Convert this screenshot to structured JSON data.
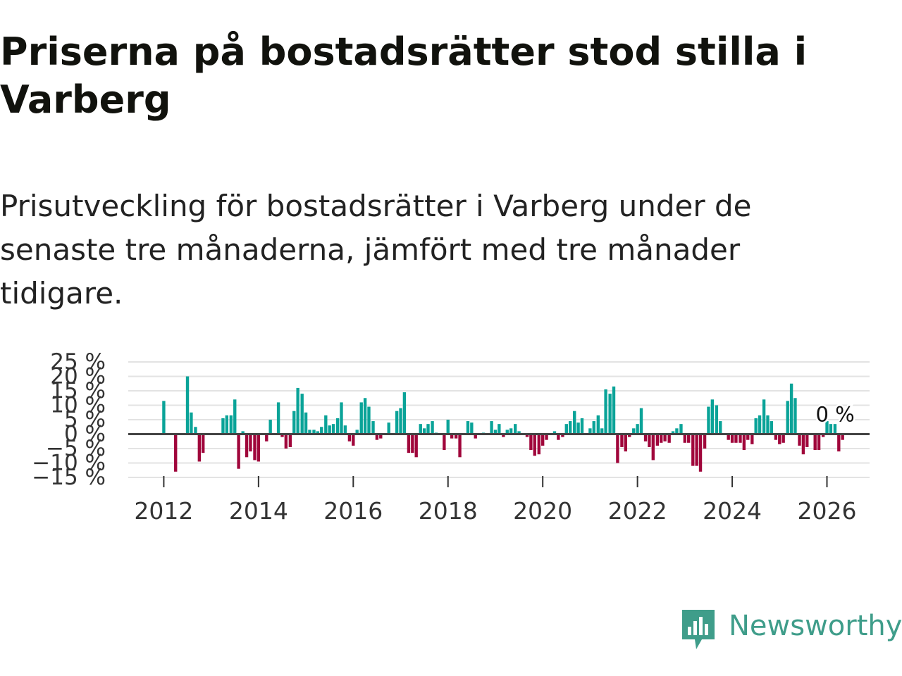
{
  "header": {
    "title": "Priserna på bostadsrätter stod stilla i Varberg",
    "subtitle": "Prisutveckling för bostadsrätter i Varberg under de senaste tre månaderna, jämfört med tre månader tidigare."
  },
  "brand": {
    "name": "Newsworthy",
    "color": "#3f9d8a"
  },
  "colors": {
    "positive": "#0aa398",
    "negative": "#a0063b",
    "zero_line": "#444444",
    "grid": "#e3e3e3"
  },
  "chart_data": {
    "type": "bar",
    "title": "Priserna på bostadsrätter stod stilla i Varberg",
    "xlabel": "",
    "ylabel": "",
    "ylim": [
      -15,
      25
    ],
    "xlim": [
      2011.25,
      2026.9
    ],
    "x_ticks": [
      2012,
      2014,
      2016,
      2018,
      2020,
      2022,
      2024,
      2026
    ],
    "y_ticks": [
      25,
      20,
      15,
      10,
      5,
      0,
      -5,
      -10,
      -15
    ],
    "y_tick_labels": [
      "25 %",
      "20 %",
      "15 %",
      "10 %",
      "5 %",
      "0 %",
      "−5 %",
      "−10 %",
      "−15 %"
    ],
    "annotation": {
      "text": "0 %",
      "x": 2026.0,
      "y": 0
    },
    "bars": [
      {
        "x": 2012.0,
        "y": 11.5
      },
      {
        "x": 2012.08,
        "y": 0
      },
      {
        "x": 2012.17,
        "y": 0
      },
      {
        "x": 2012.25,
        "y": -13
      },
      {
        "x": 2012.33,
        "y": 0
      },
      {
        "x": 2012.42,
        "y": 0
      },
      {
        "x": 2012.5,
        "y": 20
      },
      {
        "x": 2012.58,
        "y": 7.5
      },
      {
        "x": 2012.67,
        "y": 2.5
      },
      {
        "x": 2012.75,
        "y": -9.5
      },
      {
        "x": 2012.83,
        "y": -6.5
      },
      {
        "x": 2013.25,
        "y": 5.5
      },
      {
        "x": 2013.33,
        "y": 6.5
      },
      {
        "x": 2013.42,
        "y": 6.5
      },
      {
        "x": 2013.5,
        "y": 12
      },
      {
        "x": 2013.58,
        "y": -12
      },
      {
        "x": 2013.67,
        "y": 1
      },
      {
        "x": 2013.75,
        "y": -8
      },
      {
        "x": 2013.83,
        "y": -6
      },
      {
        "x": 2013.92,
        "y": -9
      },
      {
        "x": 2014.0,
        "y": -9.5
      },
      {
        "x": 2014.08,
        "y": 0
      },
      {
        "x": 2014.17,
        "y": -2.5
      },
      {
        "x": 2014.25,
        "y": 5
      },
      {
        "x": 2014.33,
        "y": 0
      },
      {
        "x": 2014.42,
        "y": 11
      },
      {
        "x": 2014.5,
        "y": -1
      },
      {
        "x": 2014.58,
        "y": -5
      },
      {
        "x": 2014.67,
        "y": -4.5
      },
      {
        "x": 2014.75,
        "y": 8
      },
      {
        "x": 2014.83,
        "y": 16
      },
      {
        "x": 2014.92,
        "y": 14
      },
      {
        "x": 2015.0,
        "y": 7.5
      },
      {
        "x": 2015.08,
        "y": 1.5
      },
      {
        "x": 2015.17,
        "y": 1.5
      },
      {
        "x": 2015.25,
        "y": 1
      },
      {
        "x": 2015.33,
        "y": 2.5
      },
      {
        "x": 2015.42,
        "y": 6.5
      },
      {
        "x": 2015.5,
        "y": 3
      },
      {
        "x": 2015.58,
        "y": 3.5
      },
      {
        "x": 2015.67,
        "y": 5.5
      },
      {
        "x": 2015.75,
        "y": 11
      },
      {
        "x": 2015.83,
        "y": 3
      },
      {
        "x": 2015.92,
        "y": -2.5
      },
      {
        "x": 2016.0,
        "y": -4
      },
      {
        "x": 2016.08,
        "y": 1.5
      },
      {
        "x": 2016.17,
        "y": 11
      },
      {
        "x": 2016.25,
        "y": 12.5
      },
      {
        "x": 2016.33,
        "y": 9.5
      },
      {
        "x": 2016.42,
        "y": 4.5
      },
      {
        "x": 2016.5,
        "y": -2
      },
      {
        "x": 2016.58,
        "y": -1.5
      },
      {
        "x": 2016.67,
        "y": 0
      },
      {
        "x": 2016.75,
        "y": 4
      },
      {
        "x": 2016.83,
        "y": 0
      },
      {
        "x": 2016.92,
        "y": 8
      },
      {
        "x": 2017.0,
        "y": 9
      },
      {
        "x": 2017.08,
        "y": 14.5
      },
      {
        "x": 2017.17,
        "y": -6.5
      },
      {
        "x": 2017.25,
        "y": -6.5
      },
      {
        "x": 2017.33,
        "y": -8
      },
      {
        "x": 2017.42,
        "y": 3.5
      },
      {
        "x": 2017.5,
        "y": 2
      },
      {
        "x": 2017.58,
        "y": 3.5
      },
      {
        "x": 2017.67,
        "y": 4.5
      },
      {
        "x": 2017.75,
        "y": 0.5
      },
      {
        "x": 2017.83,
        "y": 0
      },
      {
        "x": 2017.92,
        "y": -5.5
      },
      {
        "x": 2018.0,
        "y": 5
      },
      {
        "x": 2018.08,
        "y": -1.5
      },
      {
        "x": 2018.17,
        "y": -1.5
      },
      {
        "x": 2018.25,
        "y": -8
      },
      {
        "x": 2018.33,
        "y": 0
      },
      {
        "x": 2018.42,
        "y": 4.5
      },
      {
        "x": 2018.5,
        "y": 4
      },
      {
        "x": 2018.58,
        "y": -1.5
      },
      {
        "x": 2018.67,
        "y": 0
      },
      {
        "x": 2018.75,
        "y": 0.5
      },
      {
        "x": 2018.83,
        "y": 0
      },
      {
        "x": 2018.92,
        "y": 4.5
      },
      {
        "x": 2019.0,
        "y": 1.5
      },
      {
        "x": 2019.08,
        "y": 3.5
      },
      {
        "x": 2019.17,
        "y": -1
      },
      {
        "x": 2019.25,
        "y": 1.5
      },
      {
        "x": 2019.33,
        "y": 2
      },
      {
        "x": 2019.42,
        "y": 3.5
      },
      {
        "x": 2019.5,
        "y": 1
      },
      {
        "x": 2019.58,
        "y": 0
      },
      {
        "x": 2019.67,
        "y": -1
      },
      {
        "x": 2019.75,
        "y": -5.5
      },
      {
        "x": 2019.83,
        "y": -7.5
      },
      {
        "x": 2019.92,
        "y": -7
      },
      {
        "x": 2020.0,
        "y": -4
      },
      {
        "x": 2020.08,
        "y": -2
      },
      {
        "x": 2020.17,
        "y": 0
      },
      {
        "x": 2020.25,
        "y": 1
      },
      {
        "x": 2020.33,
        "y": -2
      },
      {
        "x": 2020.42,
        "y": -1
      },
      {
        "x": 2020.5,
        "y": 3.5
      },
      {
        "x": 2020.58,
        "y": 4.5
      },
      {
        "x": 2020.67,
        "y": 8
      },
      {
        "x": 2020.75,
        "y": 4
      },
      {
        "x": 2020.83,
        "y": 5.5
      },
      {
        "x": 2020.92,
        "y": 0
      },
      {
        "x": 2021.0,
        "y": 2
      },
      {
        "x": 2021.08,
        "y": 4.5
      },
      {
        "x": 2021.17,
        "y": 6.5
      },
      {
        "x": 2021.25,
        "y": 2
      },
      {
        "x": 2021.33,
        "y": 15.5
      },
      {
        "x": 2021.42,
        "y": 14
      },
      {
        "x": 2021.5,
        "y": 16.5
      },
      {
        "x": 2021.58,
        "y": -10
      },
      {
        "x": 2021.67,
        "y": -4.5
      },
      {
        "x": 2021.75,
        "y": -6
      },
      {
        "x": 2021.83,
        "y": -1
      },
      {
        "x": 2021.92,
        "y": 2
      },
      {
        "x": 2022.0,
        "y": 3.5
      },
      {
        "x": 2022.08,
        "y": 9
      },
      {
        "x": 2022.17,
        "y": -2.5
      },
      {
        "x": 2022.25,
        "y": -4.5
      },
      {
        "x": 2022.33,
        "y": -9
      },
      {
        "x": 2022.42,
        "y": -4
      },
      {
        "x": 2022.5,
        "y": -3
      },
      {
        "x": 2022.58,
        "y": -2.5
      },
      {
        "x": 2022.67,
        "y": -3
      },
      {
        "x": 2022.75,
        "y": 1
      },
      {
        "x": 2022.83,
        "y": 2
      },
      {
        "x": 2022.92,
        "y": 3.5
      },
      {
        "x": 2023.0,
        "y": -3
      },
      {
        "x": 2023.08,
        "y": -3
      },
      {
        "x": 2023.17,
        "y": -11
      },
      {
        "x": 2023.25,
        "y": -11
      },
      {
        "x": 2023.33,
        "y": -13
      },
      {
        "x": 2023.42,
        "y": -5
      },
      {
        "x": 2023.5,
        "y": 9.5
      },
      {
        "x": 2023.58,
        "y": 12
      },
      {
        "x": 2023.67,
        "y": 10
      },
      {
        "x": 2023.75,
        "y": 4.5
      },
      {
        "x": 2023.83,
        "y": 0
      },
      {
        "x": 2023.92,
        "y": -2
      },
      {
        "x": 2024.0,
        "y": -3
      },
      {
        "x": 2024.08,
        "y": -3
      },
      {
        "x": 2024.17,
        "y": -3
      },
      {
        "x": 2024.25,
        "y": -5.5
      },
      {
        "x": 2024.33,
        "y": -2
      },
      {
        "x": 2024.42,
        "y": -3.5
      },
      {
        "x": 2024.5,
        "y": 5.5
      },
      {
        "x": 2024.58,
        "y": 6.5
      },
      {
        "x": 2024.67,
        "y": 12
      },
      {
        "x": 2024.75,
        "y": 6.5
      },
      {
        "x": 2024.83,
        "y": 4.5
      },
      {
        "x": 2024.92,
        "y": -2
      },
      {
        "x": 2025.0,
        "y": -3.5
      },
      {
        "x": 2025.08,
        "y": -3
      },
      {
        "x": 2025.17,
        "y": 11.5
      },
      {
        "x": 2025.25,
        "y": 17.5
      },
      {
        "x": 2025.33,
        "y": 12.5
      },
      {
        "x": 2025.42,
        "y": -4
      },
      {
        "x": 2025.5,
        "y": -7
      },
      {
        "x": 2025.58,
        "y": -4.5
      },
      {
        "x": 2025.67,
        "y": 0
      },
      {
        "x": 2025.75,
        "y": -5.5
      },
      {
        "x": 2025.83,
        "y": -5.5
      },
      {
        "x": 2025.92,
        "y": -1
      },
      {
        "x": 2026.0,
        "y": 4.5
      },
      {
        "x": 2026.08,
        "y": 3.5
      },
      {
        "x": 2026.17,
        "y": 3.5
      },
      {
        "x": 2026.25,
        "y": -6
      },
      {
        "x": 2026.33,
        "y": -2
      }
    ]
  }
}
